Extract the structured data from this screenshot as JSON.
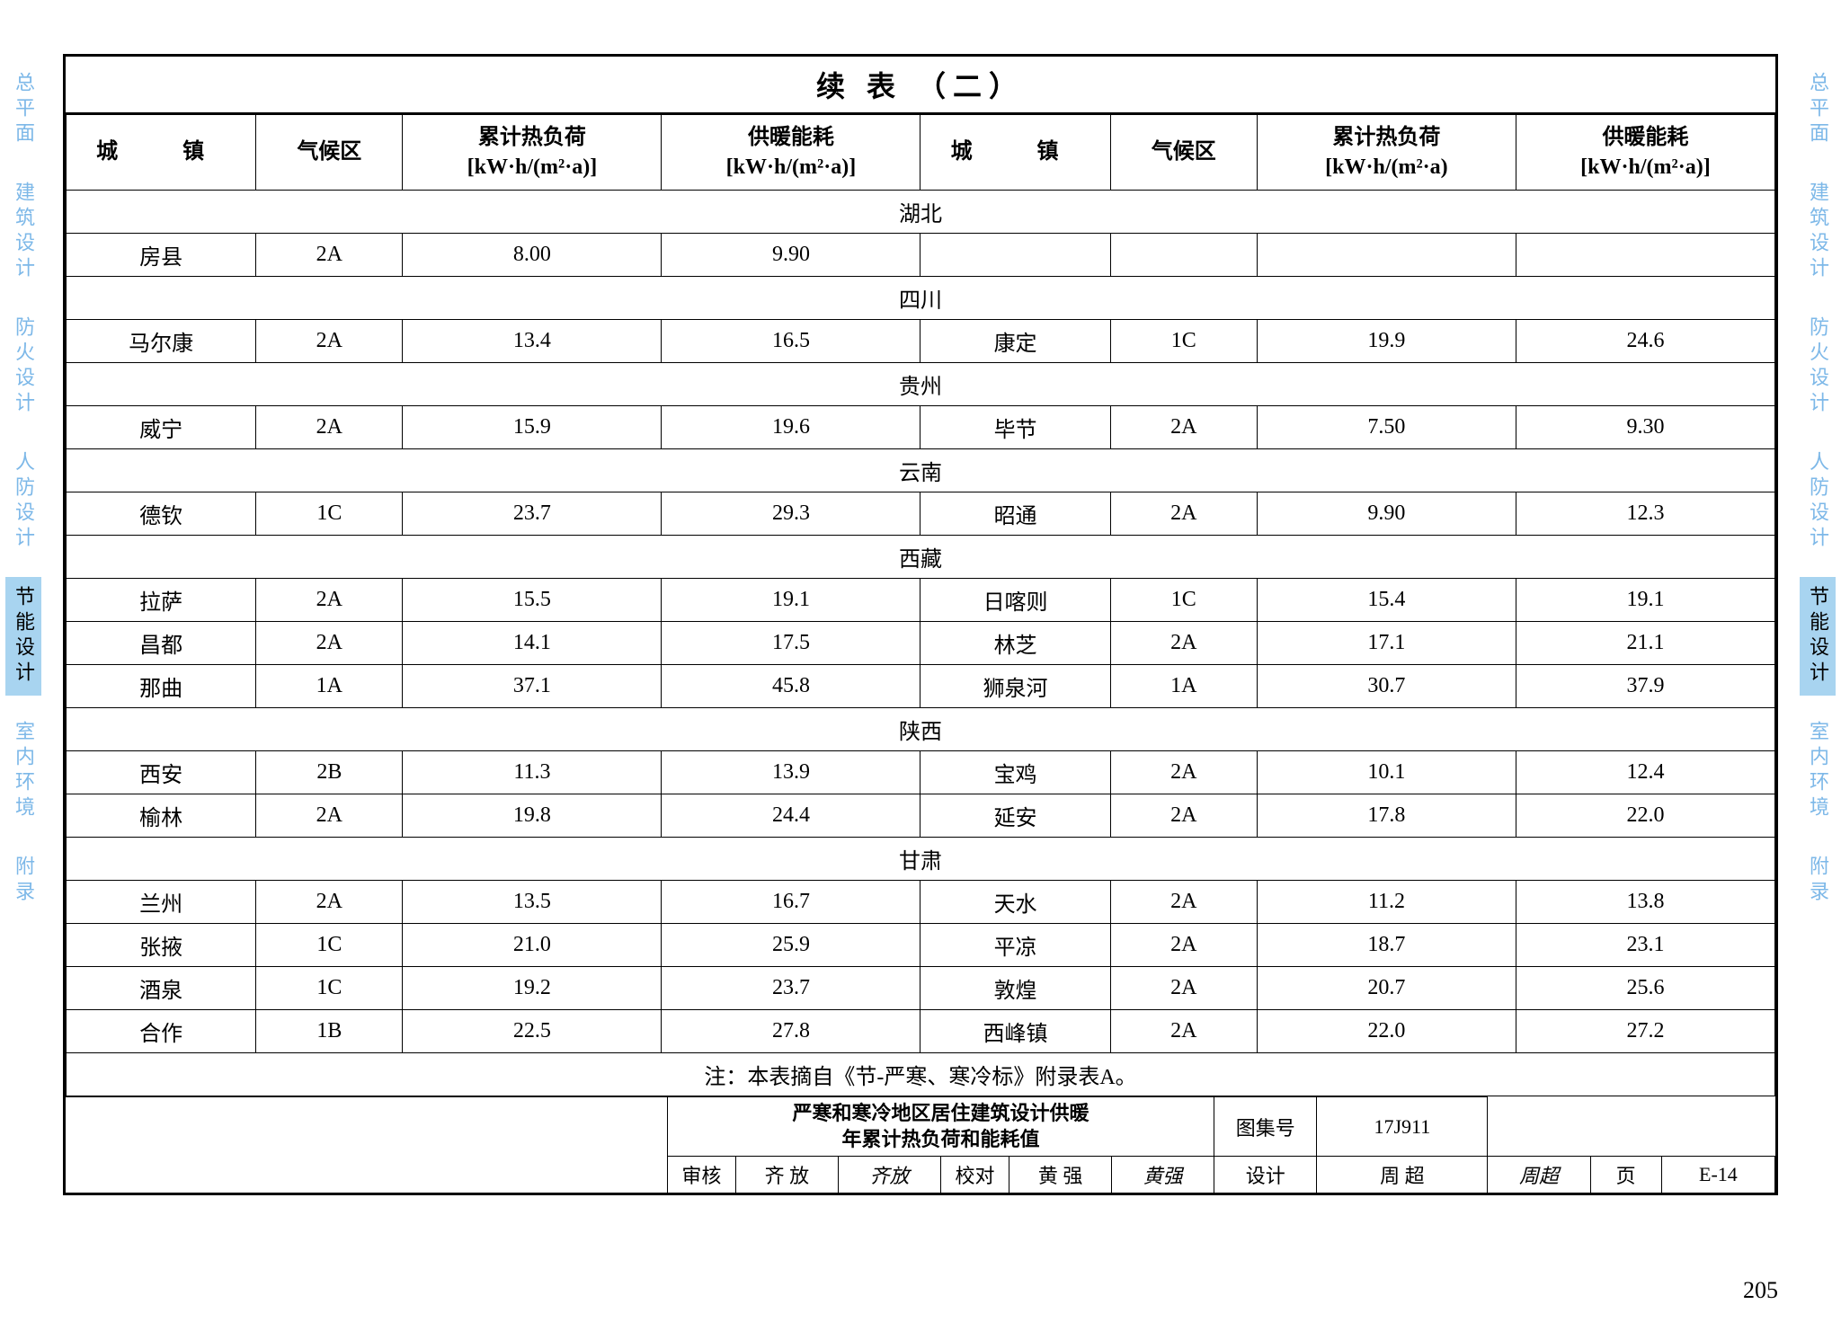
{
  "title": "续 表 （二）",
  "sideTabs": [
    "总平面",
    "建筑设计",
    "防火设计",
    "人防设计",
    "节能设计",
    "室内环境",
    "附录"
  ],
  "activeTab": "节能设计",
  "headers": {
    "city": "城　镇",
    "zone": "气候区",
    "load": "累计热负荷",
    "loadUnit": "[kW·h/(m²·a)]",
    "loadUnit2": "[kW·h/(m²·a)",
    "energy": "供暖能耗",
    "energyUnit": "[kW·h/(m²·a)]"
  },
  "sections": [
    {
      "province": "湖北",
      "rows": [
        {
          "c1": "房县",
          "z1": "2A",
          "l1": "8.00",
          "e1": "9.90",
          "c2": "",
          "z2": "",
          "l2": "",
          "e2": ""
        }
      ]
    },
    {
      "province": "四川",
      "rows": [
        {
          "c1": "马尔康",
          "z1": "2A",
          "l1": "13.4",
          "e1": "16.5",
          "c2": "康定",
          "z2": "1C",
          "l2": "19.9",
          "e2": "24.6"
        }
      ]
    },
    {
      "province": "贵州",
      "rows": [
        {
          "c1": "威宁",
          "z1": "2A",
          "l1": "15.9",
          "e1": "19.6",
          "c2": "毕节",
          "z2": "2A",
          "l2": "7.50",
          "e2": "9.30"
        }
      ]
    },
    {
      "province": "云南",
      "rows": [
        {
          "c1": "德钦",
          "z1": "1C",
          "l1": "23.7",
          "e1": "29.3",
          "c2": "昭通",
          "z2": "2A",
          "l2": "9.90",
          "e2": "12.3"
        }
      ]
    },
    {
      "province": "西藏",
      "rows": [
        {
          "c1": "拉萨",
          "z1": "2A",
          "l1": "15.5",
          "e1": "19.1",
          "c2": "日喀则",
          "z2": "1C",
          "l2": "15.4",
          "e2": "19.1"
        },
        {
          "c1": "昌都",
          "z1": "2A",
          "l1": "14.1",
          "e1": "17.5",
          "c2": "林芝",
          "z2": "2A",
          "l2": "17.1",
          "e2": "21.1"
        },
        {
          "c1": "那曲",
          "z1": "1A",
          "l1": "37.1",
          "e1": "45.8",
          "c2": "狮泉河",
          "z2": "1A",
          "l2": "30.7",
          "e2": "37.9"
        }
      ]
    },
    {
      "province": "陕西",
      "rows": [
        {
          "c1": "西安",
          "z1": "2B",
          "l1": "11.3",
          "e1": "13.9",
          "c2": "宝鸡",
          "z2": "2A",
          "l2": "10.1",
          "e2": "12.4"
        },
        {
          "c1": "榆林",
          "z1": "2A",
          "l1": "19.8",
          "e1": "24.4",
          "c2": "延安",
          "z2": "2A",
          "l2": "17.8",
          "e2": "22.0"
        }
      ]
    },
    {
      "province": "甘肃",
      "rows": [
        {
          "c1": "兰州",
          "z1": "2A",
          "l1": "13.5",
          "e1": "16.7",
          "c2": "天水",
          "z2": "2A",
          "l2": "11.2",
          "e2": "13.8"
        },
        {
          "c1": "张掖",
          "z1": "1C",
          "l1": "21.0",
          "e1": "25.9",
          "c2": "平凉",
          "z2": "2A",
          "l2": "18.7",
          "e2": "23.1"
        },
        {
          "c1": "酒泉",
          "z1": "1C",
          "l1": "19.2",
          "e1": "23.7",
          "c2": "敦煌",
          "z2": "2A",
          "l2": "20.7",
          "e2": "25.6"
        },
        {
          "c1": "合作",
          "z1": "1B",
          "l1": "22.5",
          "e1": "27.8",
          "c2": "西峰镇",
          "z2": "2A",
          "l2": "22.0",
          "e2": "27.2"
        }
      ]
    }
  ],
  "note": "注：本表摘自《节-严寒、寒冷标》附录表A。",
  "footer": {
    "title1": "严寒和寒冷地区居住建筑设计供暖",
    "title2": "年累计热负荷和能耗值",
    "labels": {
      "shenhe": "审核",
      "jiaodui": "校对",
      "sheji": "设计",
      "tuji": "图集号",
      "ye": "页"
    },
    "names": {
      "shenhe": "齐 放",
      "shenheSig": "齐放",
      "jiaodui": "黄 强",
      "jiaoduiSig": "黄强",
      "sheji": "周 超",
      "shejiSig": "周超"
    },
    "tuji": "17J911",
    "page": "E-14"
  },
  "pageNum": "205"
}
